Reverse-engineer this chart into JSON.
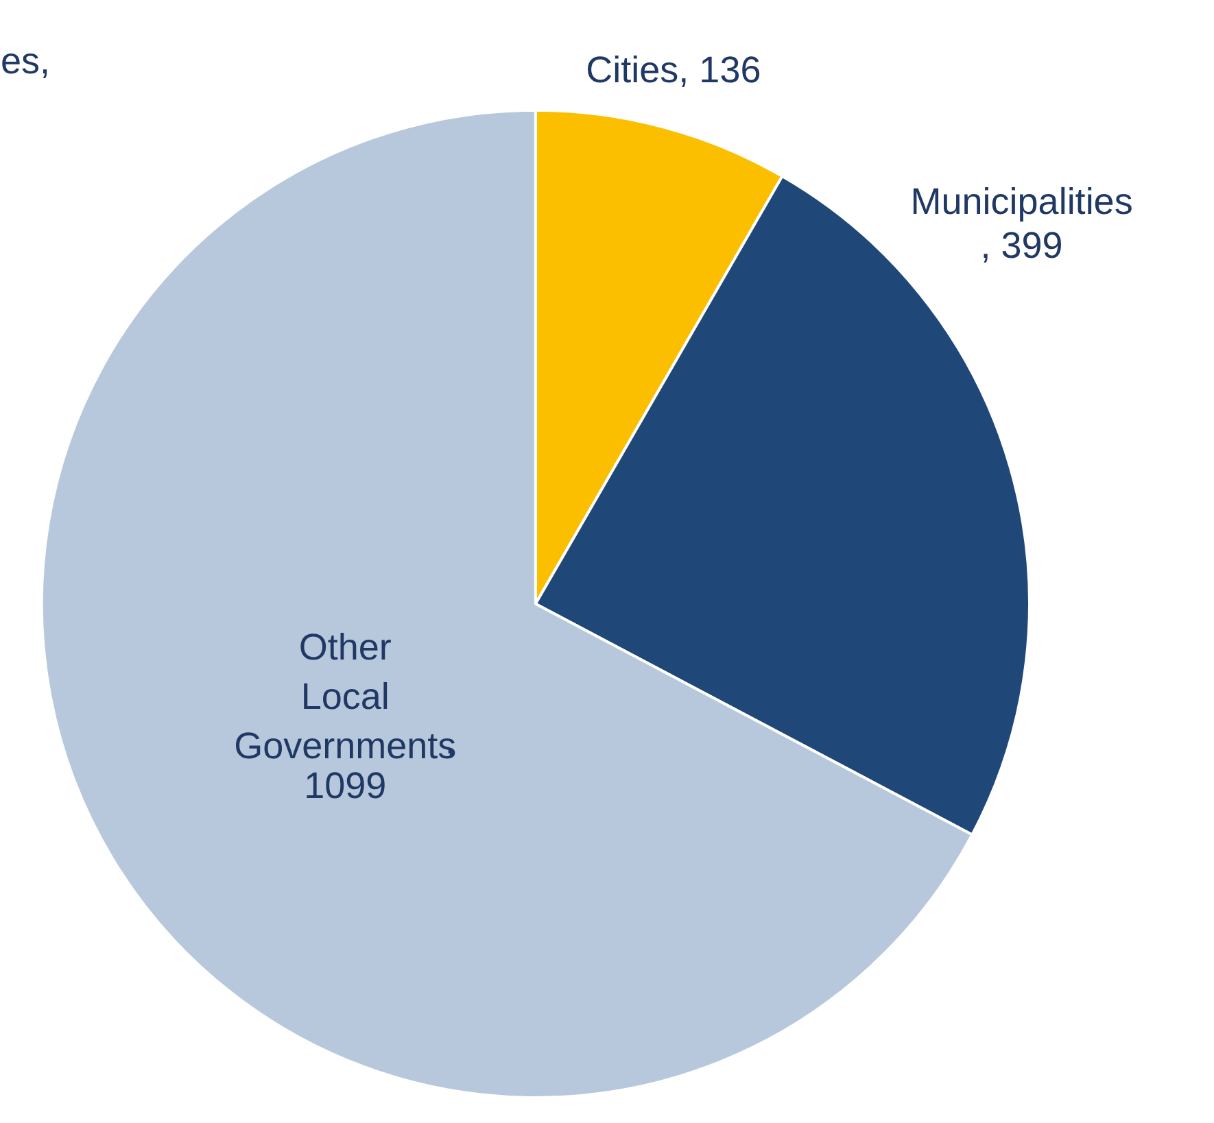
{
  "chart_data": {
    "type": "pie",
    "categories": [
      "Cities",
      "Municipalities",
      "Other Local Governments"
    ],
    "values": [
      136,
      399,
      1099
    ],
    "colors": [
      "#fbbf00",
      "#1f4878",
      "#b8c8dc"
    ],
    "value_labels": [
      ", 136",
      ", 399",
      ",\n1099"
    ],
    "annotations": [
      "es,"
    ]
  }
}
